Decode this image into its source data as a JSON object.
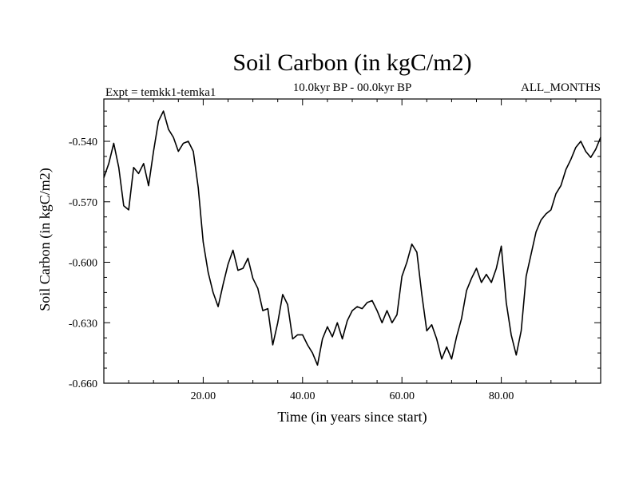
{
  "chart_data": {
    "type": "line",
    "title": "Soil Carbon (in kgC/m2)",
    "subtitle_left": "Expt = temkk1-temka1",
    "subtitle_center": "10.0kyr BP - 00.0kyr BP",
    "subtitle_right": "ALL_MONTHS",
    "xlabel": "Time (in years since start)",
    "ylabel": "Soil Carbon (in kgC/m2)",
    "xlim": [
      0,
      100
    ],
    "ylim": [
      -0.66,
      -0.519
    ],
    "xticks": [
      20,
      40,
      60,
      80
    ],
    "xtick_labels": [
      "20.00",
      "40.00",
      "60.00",
      "80.00"
    ],
    "yticks": [
      -0.54,
      -0.57,
      -0.6,
      -0.63,
      -0.66
    ],
    "ytick_labels": [
      "-0.540",
      "-0.570",
      "-0.600",
      "-0.630",
      "-0.660"
    ],
    "grid": false,
    "series": [
      {
        "name": "temkk1-temka1",
        "x": [
          0,
          1,
          2,
          3,
          4,
          5,
          6,
          7,
          8,
          9,
          10,
          11,
          12,
          13,
          14,
          15,
          16,
          17,
          18,
          19,
          20,
          21,
          22,
          23,
          24,
          25,
          26,
          27,
          28,
          29,
          30,
          31,
          32,
          33,
          34,
          35,
          36,
          37,
          38,
          39,
          40,
          41,
          42,
          43,
          44,
          45,
          46,
          47,
          48,
          49,
          50,
          51,
          52,
          53,
          54,
          55,
          56,
          57,
          58,
          59,
          60,
          61,
          62,
          63,
          64,
          65,
          66,
          67,
          68,
          69,
          70,
          71,
          72,
          73,
          74,
          75,
          76,
          77,
          78,
          79,
          80,
          81,
          82,
          83,
          84,
          85,
          86,
          87,
          88,
          89,
          90,
          91,
          92,
          93,
          94,
          95,
          96,
          97,
          98,
          99,
          100
        ],
        "values": [
          -0.558,
          -0.551,
          -0.541,
          -0.553,
          -0.572,
          -0.574,
          -0.553,
          -0.556,
          -0.551,
          -0.562,
          -0.545,
          -0.53,
          -0.525,
          -0.534,
          -0.538,
          -0.545,
          -0.541,
          -0.54,
          -0.545,
          -0.563,
          -0.59,
          -0.605,
          -0.615,
          -0.622,
          -0.611,
          -0.601,
          -0.594,
          -0.604,
          -0.603,
          -0.598,
          -0.608,
          -0.613,
          -0.624,
          -0.623,
          -0.641,
          -0.63,
          -0.616,
          -0.621,
          -0.638,
          -0.636,
          -0.636,
          -0.641,
          -0.645,
          -0.651,
          -0.638,
          -0.632,
          -0.637,
          -0.63,
          -0.638,
          -0.629,
          -0.624,
          -0.622,
          -0.623,
          -0.62,
          -0.619,
          -0.624,
          -0.63,
          -0.624,
          -0.63,
          -0.626,
          -0.607,
          -0.6,
          -0.591,
          -0.595,
          -0.616,
          -0.634,
          -0.631,
          -0.638,
          -0.648,
          -0.642,
          -0.648,
          -0.637,
          -0.628,
          -0.614,
          -0.608,
          -0.603,
          -0.61,
          -0.606,
          -0.61,
          -0.603,
          -0.592,
          -0.62,
          -0.636,
          -0.646,
          -0.634,
          -0.607,
          -0.596,
          -0.585,
          -0.579,
          -0.576,
          -0.574,
          -0.566,
          -0.562,
          -0.554,
          -0.549,
          -0.543,
          -0.54,
          -0.545,
          -0.548,
          -0.544,
          -0.538
        ]
      }
    ]
  }
}
